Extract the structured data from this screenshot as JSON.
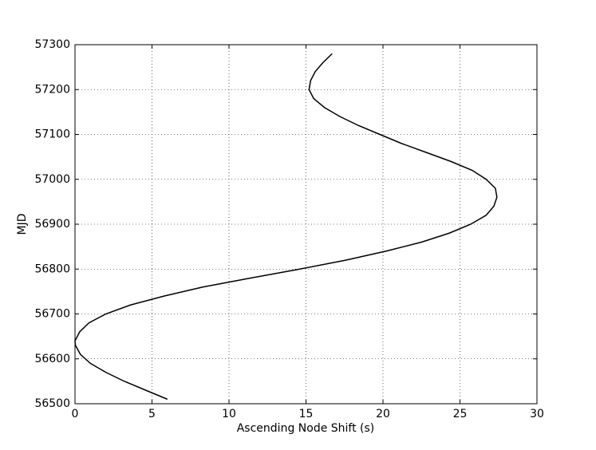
{
  "chart_data": {
    "type": "line",
    "xlabel": "Ascending Node Shift (s)",
    "ylabel": "MJD",
    "x": [
      6.0,
      4.6,
      3.2,
      2.0,
      1.0,
      0.35,
      0.03,
      0.0,
      0.3,
      0.9,
      2.0,
      3.6,
      5.8,
      8.3,
      11.4,
      14.6,
      17.6,
      20.2,
      22.5,
      24.3,
      25.7,
      26.7,
      27.2,
      27.4,
      27.3,
      26.7,
      25.8,
      24.4,
      22.8,
      21.2,
      19.8,
      18.4,
      17.2,
      16.2,
      15.5,
      15.2,
      15.3,
      15.6,
      16.1,
      16.7
    ],
    "series": [
      {
        "color": "#000000",
        "values": [
          56510,
          56530,
          56550,
          56570,
          56590,
          56610,
          56630,
          56640,
          56660,
          56680,
          56700,
          56720,
          56740,
          56760,
          56780,
          56800,
          56820,
          56840,
          56860,
          56880,
          56900,
          56920,
          56940,
          56960,
          56980,
          57000,
          57020,
          57040,
          57060,
          57080,
          57100,
          57120,
          57140,
          57160,
          57180,
          57200,
          57220,
          57240,
          57260,
          57280
        ]
      }
    ],
    "xlim": [
      0,
      30
    ],
    "xticks": [
      0,
      5,
      10,
      15,
      20,
      25,
      30
    ],
    "ylim": [
      56500,
      57300
    ],
    "yticks": [
      56500,
      56600,
      56700,
      56800,
      56900,
      57000,
      57100,
      57200,
      57300
    ],
    "grid": true
  }
}
